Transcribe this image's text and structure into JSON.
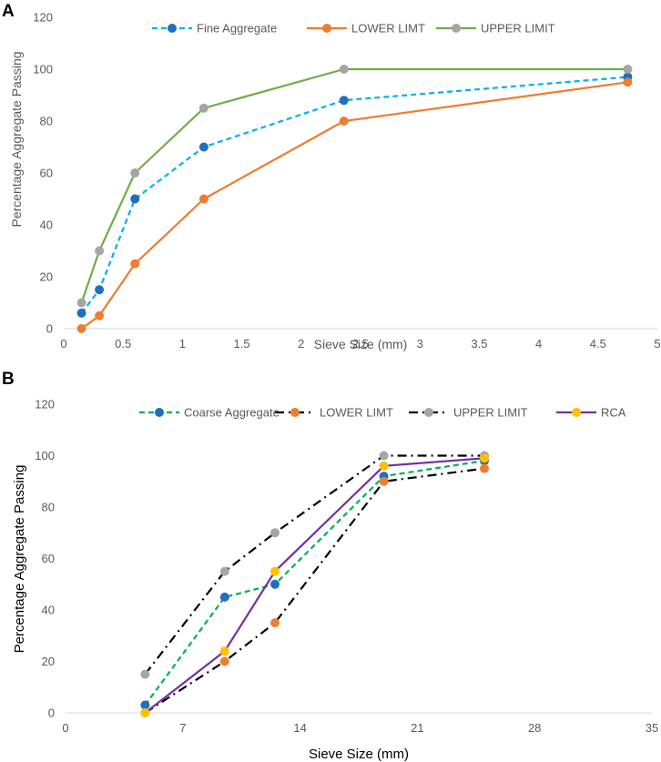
{
  "chart_data": [
    {
      "type": "line",
      "panel_label": "A",
      "title": "",
      "xlabel": "Sieve Size (mm)",
      "ylabel": "Percentage Aggregate Passing",
      "xlim": [
        0,
        5
      ],
      "ylim": [
        0,
        120
      ],
      "xticks": [
        0,
        0.5,
        1,
        1.5,
        2,
        2.5,
        3,
        3.5,
        4,
        4.5,
        5
      ],
      "xtick_labels": [
        "0",
        "0.5",
        "1",
        "1.5",
        "2",
        "2.5",
        "3",
        "3.5",
        "4",
        "4.5",
        "5"
      ],
      "yticks": [
        0,
        20,
        40,
        60,
        80,
        100,
        120
      ],
      "ytick_labels": [
        "0",
        "20",
        "40",
        "60",
        "80",
        "100",
        "120"
      ],
      "grid": false,
      "legend_position": "top",
      "series": [
        {
          "name": "Fine Aggregate",
          "color": "#00B0F0",
          "marker": "#1F6FBF",
          "dash": "dashed",
          "x": [
            0.15,
            0.3,
            0.6,
            1.18,
            2.36,
            4.75
          ],
          "values": [
            6,
            15,
            50,
            70,
            88,
            97
          ]
        },
        {
          "name": "LOWER LIMT",
          "color": "#ED7D31",
          "marker": "#ED7D31",
          "dash": "solid",
          "x": [
            0.15,
            0.3,
            0.6,
            1.18,
            2.36,
            4.75
          ],
          "values": [
            0,
            5,
            25,
            50,
            80,
            95
          ]
        },
        {
          "name": "UPPER LIMIT",
          "color": "#70AD47",
          "marker": "#A5A5A5",
          "dash": "solid",
          "x": [
            0.15,
            0.3,
            0.6,
            1.18,
            2.36,
            4.75
          ],
          "values": [
            10,
            30,
            60,
            85,
            100,
            100
          ]
        }
      ]
    },
    {
      "type": "line",
      "panel_label": "B",
      "title": "",
      "xlabel": "Sieve Size (mm)",
      "ylabel": "Percentage Aggregate Passing",
      "xlim": [
        0,
        35
      ],
      "ylim": [
        0,
        120
      ],
      "xticks": [
        0,
        7,
        14,
        21,
        28,
        35
      ],
      "xtick_labels": [
        "0",
        "7",
        "14",
        "21",
        "28",
        "35"
      ],
      "yticks": [
        0,
        20,
        40,
        60,
        80,
        100,
        120
      ],
      "ytick_labels": [
        "0",
        "20",
        "40",
        "60",
        "80",
        "100",
        "120"
      ],
      "grid": false,
      "legend_position": "top",
      "series": [
        {
          "name": "Coarse Aggregate",
          "color": "#00B050",
          "marker": "#1F6FBF",
          "dash": "dashed",
          "x": [
            4.75,
            9.5,
            12.5,
            19,
            25
          ],
          "values": [
            3,
            45,
            50,
            92,
            98
          ]
        },
        {
          "name": "LOWER LIMT",
          "color": "#000000",
          "marker": "#ED7D31",
          "dash": "dashdot",
          "x": [
            4.75,
            9.5,
            12.5,
            19,
            25
          ],
          "values": [
            0,
            20,
            35,
            90,
            95
          ]
        },
        {
          "name": "UPPER LIMIT",
          "color": "#000000",
          "marker": "#A5A5A5",
          "dash": "dashdot",
          "x": [
            4.75,
            9.5,
            12.5,
            19,
            25
          ],
          "values": [
            15,
            55,
            70,
            100,
            100
          ]
        },
        {
          "name": "RCA",
          "color": "#7030A0",
          "marker": "#FFC000",
          "dash": "solid",
          "x": [
            4.75,
            9.5,
            12.5,
            19,
            25
          ],
          "values": [
            0,
            24,
            55,
            96,
            99
          ]
        }
      ]
    }
  ]
}
